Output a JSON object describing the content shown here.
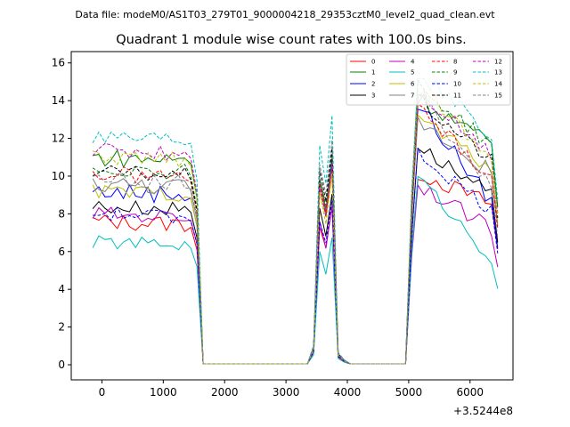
{
  "figure": {
    "suptitle": "Data file: modeM0/AS1T03_279T01_9000004218_29353cztM0_level2_quad_clean.evt"
  },
  "chart_data": {
    "type": "line",
    "title": "Quadrant 1 module wise count rates with 100.0s bins.",
    "xlabel": "",
    "ylabel": "",
    "x_offset_label": "+3.5244e8",
    "xlim": [
      -500,
      6700
    ],
    "ylim": [
      -0.8,
      16.6
    ],
    "xticks": [
      0,
      1000,
      2000,
      3000,
      4000,
      5000,
      6000
    ],
    "yticks": [
      0,
      2,
      4,
      6,
      8,
      10,
      12,
      14,
      16
    ],
    "xtick_labels": [
      "0",
      "1000",
      "2000",
      "3000",
      "4000",
      "5000",
      "6000"
    ],
    "ytick_labels": [
      "0",
      "2",
      "4",
      "6",
      "8",
      "10",
      "12",
      "14",
      "16"
    ],
    "legend_position": "top-right",
    "legend_columns": 4,
    "x": [
      -150,
      -50,
      50,
      150,
      250,
      350,
      450,
      550,
      650,
      750,
      850,
      950,
      1050,
      1150,
      1250,
      1350,
      1450,
      1550,
      1650,
      1750,
      1850,
      1950,
      2050,
      2150,
      2250,
      2350,
      2450,
      2550,
      2650,
      2750,
      2850,
      2950,
      3050,
      3150,
      3250,
      3350,
      3450,
      3550,
      3650,
      3750,
      3850,
      3950,
      4050,
      4150,
      4250,
      4350,
      4450,
      4550,
      4650,
      4750,
      4850,
      4950,
      5050,
      5150,
      5250,
      5350,
      5450,
      5550,
      5650,
      5750,
      5850,
      5950,
      6050,
      6150,
      6250,
      6350,
      6450
    ],
    "gaps": {
      "before_low_start": 18,
      "low_values": 0.05,
      "peak1_indices": [
        36,
        37,
        38,
        39,
        40,
        41
      ],
      "peak1_factors": [
        0.08,
        0.9,
        0.75,
        1.0,
        0.05,
        0.02
      ]
    },
    "series": [
      {
        "name": "0",
        "color": "#ff0000",
        "dash": "solid",
        "base": 7.6,
        "peak": 8.2,
        "late_start": 10.2,
        "late_end": 8.5,
        "noise": 0.45
      },
      {
        "name": "1",
        "color": "#008000",
        "dash": "solid",
        "base": 11.0,
        "peak": 11.0,
        "late_start": 14.2,
        "late_end": 11.6,
        "noise": 0.5
      },
      {
        "name": "2",
        "color": "#0000ff",
        "dash": "solid",
        "base": 9.2,
        "peak": 10.8,
        "late_start": 13.8,
        "late_end": 8.6,
        "noise": 0.5
      },
      {
        "name": "3",
        "color": "#000000",
        "dash": "solid",
        "base": 8.4,
        "peak": 9.2,
        "late_start": 11.6,
        "late_end": 9.0,
        "noise": 0.4
      },
      {
        "name": "4",
        "color": "#bf00bf",
        "dash": "solid",
        "base": 8.0,
        "peak": 8.4,
        "late_start": 9.6,
        "late_end": 7.2,
        "noise": 0.4
      },
      {
        "name": "5",
        "color": "#00bfbf",
        "dash": "solid",
        "base": 6.5,
        "peak": 6.6,
        "late_start": 10.0,
        "late_end": 5.6,
        "noise": 0.35
      },
      {
        "name": "6",
        "color": "#bfbf00",
        "dash": "solid",
        "base": 9.2,
        "peak": 10.2,
        "late_start": 13.2,
        "late_end": 10.4,
        "noise": 0.4
      },
      {
        "name": "7",
        "color": "#808080",
        "dash": "solid",
        "base": 9.6,
        "peak": 10.6,
        "late_start": 13.0,
        "late_end": 10.2,
        "noise": 0.45
      },
      {
        "name": "8",
        "color": "#ff0000",
        "dash": "dashed",
        "base": 10.1,
        "peak": 10.6,
        "late_start": 13.6,
        "late_end": 10.0,
        "noise": 0.45
      },
      {
        "name": "9",
        "color": "#008000",
        "dash": "dashed",
        "base": 10.4,
        "peak": 11.2,
        "late_start": 14.8,
        "late_end": 11.6,
        "noise": 0.45
      },
      {
        "name": "10",
        "color": "#0000ff",
        "dash": "dashed",
        "base": 8.0,
        "peak": 8.6,
        "late_start": 11.2,
        "late_end": 8.2,
        "noise": 0.4
      },
      {
        "name": "11",
        "color": "#000000",
        "dash": "dashed",
        "base": 10.2,
        "peak": 11.6,
        "late_start": 14.0,
        "late_end": 10.8,
        "noise": 0.4
      },
      {
        "name": "12",
        "color": "#bf00bf",
        "dash": "dashed",
        "base": 11.4,
        "peak": 10.6,
        "late_start": 14.6,
        "late_end": 11.2,
        "noise": 0.45
      },
      {
        "name": "13",
        "color": "#00bfbf",
        "dash": "dashed",
        "base": 12.2,
        "peak": 13.0,
        "late_start": 15.5,
        "late_end": 12.2,
        "noise": 0.45
      },
      {
        "name": "14",
        "color": "#bfbf00",
        "dash": "dashed",
        "base": 11.0,
        "peak": 10.2,
        "late_start": 14.8,
        "late_end": 11.0,
        "noise": 0.45
      },
      {
        "name": "15",
        "color": "#808080",
        "dash": "dashed",
        "base": 9.8,
        "peak": 11.8,
        "late_start": 14.4,
        "late_end": 9.4,
        "noise": 0.4
      }
    ]
  }
}
